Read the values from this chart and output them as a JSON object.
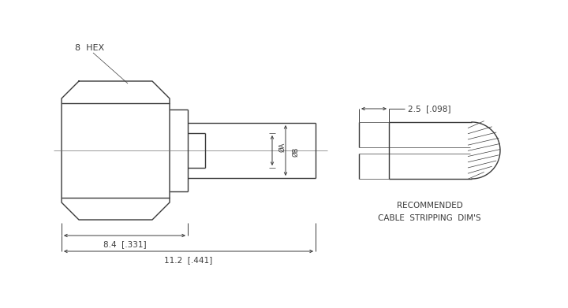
{
  "bg_color": "#ffffff",
  "line_color": "#3a3a3a",
  "lw": 1.0,
  "thin_lw": 0.5,
  "dim_lw": 0.7,
  "label_8hex": "8  HEX",
  "label_A": "ØA",
  "label_B": "ØB",
  "label_84": "8.4  [.331]",
  "label_112": "11.2  [.441]",
  "label_25": "2.5  [.098]",
  "label_rec1": "RECOMMENDED",
  "label_rec2": "CABLE  STRIPPING  DIM'S",
  "fontsize_main": 7.5,
  "fontsize_small": 6.0,
  "fontsize_label": 8.0
}
